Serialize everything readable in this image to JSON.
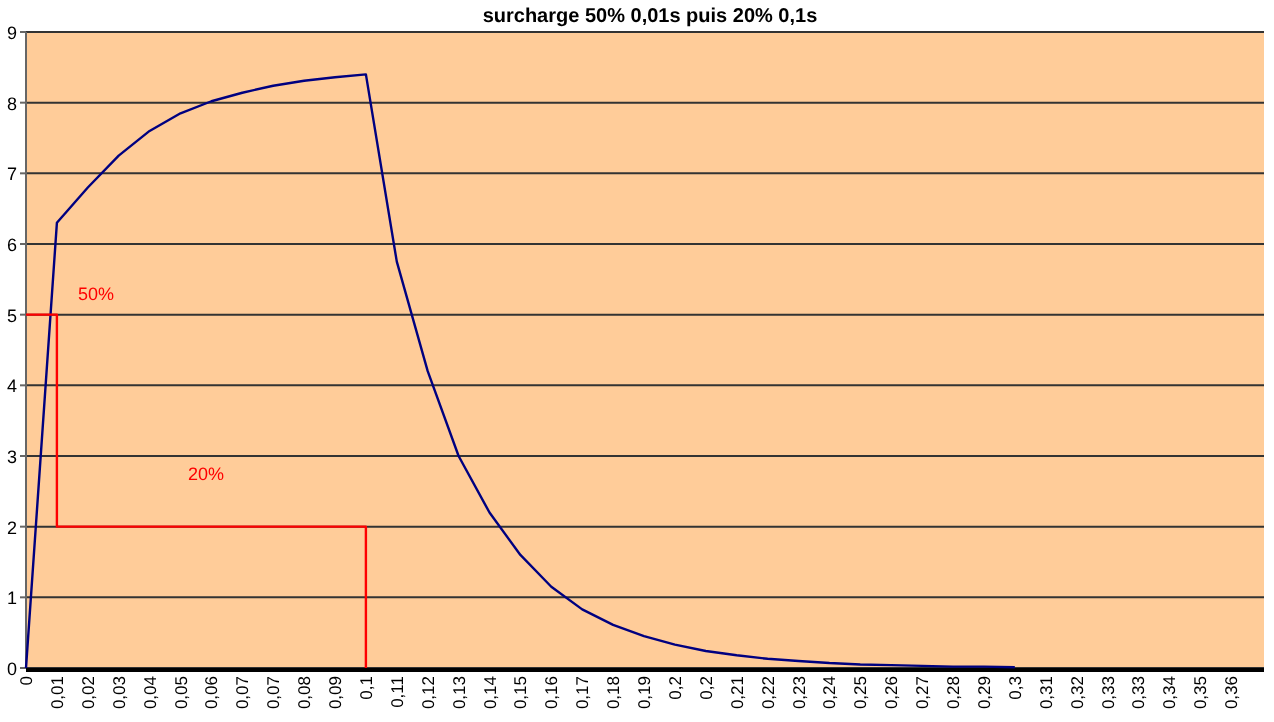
{
  "chart_data": {
    "type": "line",
    "title": "surcharge 50% 0,01s puis 20% 0,1s",
    "categories": [
      "0",
      "0,01",
      "0,02",
      "0,03",
      "0,04",
      "0,05",
      "0,06",
      "0,07",
      "0,07",
      "0,08",
      "0,09",
      "0,1",
      "0,11",
      "0,12",
      "0,13",
      "0,14",
      "0,15",
      "0,16",
      "0,17",
      "0,18",
      "0,19",
      "0,2",
      "0,2",
      "0,21",
      "0,22",
      "0,23",
      "0,24",
      "0,25",
      "0,26",
      "0,27",
      "0,28",
      "0,29",
      "0,3",
      "0,31",
      "0,32",
      "0,33",
      "0,33",
      "0,34",
      "0,35",
      "0,36"
    ],
    "series": [
      {
        "color": "#000080",
        "values": [
          0,
          6.3,
          6.8,
          7.25,
          7.6,
          7.85,
          8.02,
          8.14,
          8.24,
          8.31,
          8.36,
          8.4,
          5.75,
          4.2,
          3.0,
          2.2,
          1.6,
          1.15,
          0.83,
          0.61,
          0.45,
          0.33,
          0.24,
          0.18,
          0.13,
          0.1,
          0.07,
          0.05,
          0.04,
          0.03,
          0.02,
          0.02,
          0.01,
          null,
          null,
          null,
          null,
          null,
          null,
          null
        ]
      },
      {
        "type": "step",
        "color": "#ff0000",
        "values": [
          5,
          2,
          2,
          2,
          2,
          2,
          2,
          2,
          2,
          2,
          2,
          0,
          null,
          null,
          null,
          null,
          null,
          null,
          null,
          null,
          null,
          null,
          null,
          null,
          null,
          null,
          null,
          null,
          null,
          null,
          null,
          null,
          null,
          null,
          null,
          null,
          null,
          null,
          null,
          null
        ]
      }
    ],
    "annotations": [
      "50%",
      "20%"
    ],
    "ylim": [
      0,
      9
    ],
    "yticks": [
      0,
      1,
      2,
      3,
      4,
      5,
      6,
      7,
      8,
      9
    ],
    "grid": "y",
    "marker": "none"
  }
}
